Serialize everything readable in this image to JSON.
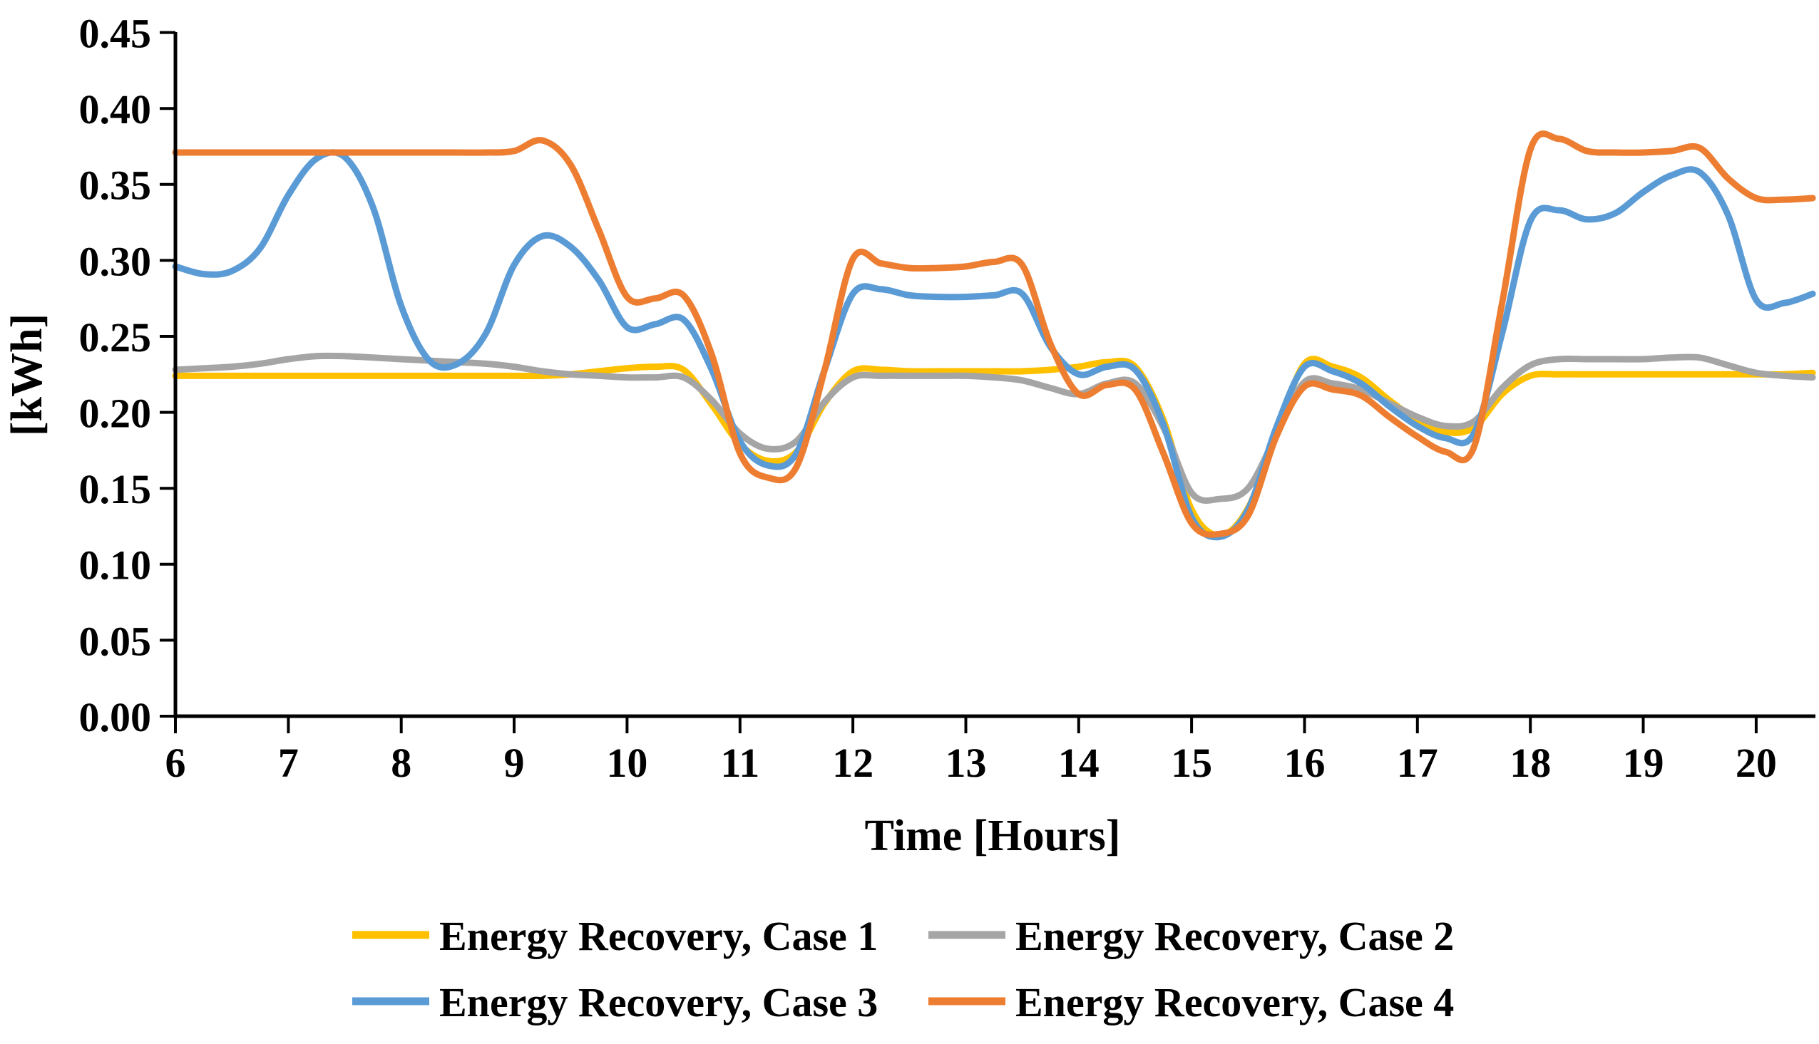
{
  "chart_data": {
    "type": "line",
    "title": "",
    "xlabel": "Time [Hours]",
    "ylabel": "[kWh]",
    "xlim": [
      6,
      20.5
    ],
    "ylim": [
      0,
      0.45
    ],
    "grid": "off",
    "legend_position": "bottom-two-rows",
    "x_ticks": [
      6,
      7,
      8,
      9,
      10,
      11,
      12,
      13,
      14,
      15,
      16,
      17,
      18,
      19,
      20
    ],
    "y_ticks": [
      0.0,
      0.05,
      0.1,
      0.15,
      0.2,
      0.25,
      0.3,
      0.35,
      0.4,
      0.45
    ],
    "y_tick_labels": [
      "0.00",
      "0.05",
      "0.10",
      "0.15",
      "0.20",
      "0.25",
      "0.30",
      "0.35",
      "0.40",
      "0.45"
    ],
    "x": [
      6,
      6.25,
      6.5,
      6.75,
      7,
      7.25,
      7.5,
      7.75,
      8,
      8.25,
      8.5,
      8.75,
      9,
      9.25,
      9.5,
      9.75,
      10,
      10.25,
      10.5,
      10.75,
      11,
      11.25,
      11.5,
      11.75,
      12,
      12.25,
      12.5,
      12.75,
      13,
      13.25,
      13.5,
      13.75,
      14,
      14.25,
      14.5,
      14.75,
      15,
      15.25,
      15.5,
      15.75,
      16,
      16.25,
      16.5,
      16.75,
      17,
      17.25,
      17.5,
      17.75,
      18,
      18.25,
      18.5,
      18.75,
      19,
      19.25,
      19.5,
      19.75,
      20,
      20.25,
      20.5
    ],
    "series": [
      {
        "name": "Energy Recovery, Case 1",
        "color": "#FFC000",
        "values": [
          0.224,
          0.224,
          0.224,
          0.224,
          0.224,
          0.224,
          0.224,
          0.224,
          0.224,
          0.224,
          0.224,
          0.224,
          0.224,
          0.224,
          0.225,
          0.227,
          0.229,
          0.23,
          0.228,
          0.205,
          0.179,
          0.168,
          0.174,
          0.206,
          0.227,
          0.228,
          0.227,
          0.227,
          0.227,
          0.227,
          0.227,
          0.228,
          0.23,
          0.233,
          0.23,
          0.195,
          0.136,
          0.119,
          0.137,
          0.186,
          0.232,
          0.23,
          0.223,
          0.208,
          0.195,
          0.187,
          0.19,
          0.212,
          0.224,
          0.225,
          0.225,
          0.225,
          0.225,
          0.225,
          0.225,
          0.225,
          0.225,
          0.225,
          0.226
        ]
      },
      {
        "name": "Energy Recovery, Case 2",
        "color": "#A5A5A5",
        "values": [
          0.228,
          0.229,
          0.23,
          0.232,
          0.235,
          0.237,
          0.237,
          0.236,
          0.235,
          0.234,
          0.233,
          0.232,
          0.23,
          0.227,
          0.225,
          0.224,
          0.223,
          0.223,
          0.223,
          0.208,
          0.186,
          0.176,
          0.181,
          0.207,
          0.223,
          0.224,
          0.224,
          0.224,
          0.224,
          0.223,
          0.221,
          0.216,
          0.212,
          0.219,
          0.219,
          0.19,
          0.147,
          0.143,
          0.15,
          0.185,
          0.22,
          0.219,
          0.215,
          0.206,
          0.197,
          0.191,
          0.194,
          0.216,
          0.231,
          0.235,
          0.235,
          0.235,
          0.235,
          0.236,
          0.236,
          0.231,
          0.226,
          0.224,
          0.223
        ]
      },
      {
        "name": "Energy Recovery, Case 3",
        "color": "#5B9BD5",
        "values": [
          0.296,
          0.291,
          0.293,
          0.308,
          0.343,
          0.367,
          0.368,
          0.335,
          0.27,
          0.234,
          0.232,
          0.252,
          0.297,
          0.316,
          0.309,
          0.287,
          0.256,
          0.258,
          0.261,
          0.228,
          0.181,
          0.165,
          0.173,
          0.228,
          0.278,
          0.281,
          0.277,
          0.276,
          0.276,
          0.277,
          0.278,
          0.243,
          0.225,
          0.23,
          0.228,
          0.192,
          0.131,
          0.118,
          0.136,
          0.19,
          0.23,
          0.227,
          0.219,
          0.204,
          0.191,
          0.183,
          0.186,
          0.252,
          0.326,
          0.333,
          0.327,
          0.331,
          0.345,
          0.356,
          0.358,
          0.33,
          0.274,
          0.272,
          0.278
        ]
      },
      {
        "name": "Energy Recovery, Case 4",
        "color": "#ED7D31",
        "values": [
          0.371,
          0.371,
          0.371,
          0.371,
          0.371,
          0.371,
          0.371,
          0.371,
          0.371,
          0.371,
          0.371,
          0.371,
          0.372,
          0.379,
          0.363,
          0.32,
          0.276,
          0.275,
          0.277,
          0.238,
          0.173,
          0.157,
          0.164,
          0.228,
          0.301,
          0.298,
          0.295,
          0.295,
          0.296,
          0.299,
          0.297,
          0.245,
          0.212,
          0.218,
          0.215,
          0.173,
          0.127,
          0.12,
          0.132,
          0.184,
          0.217,
          0.215,
          0.211,
          0.197,
          0.184,
          0.174,
          0.177,
          0.272,
          0.373,
          0.38,
          0.372,
          0.371,
          0.371,
          0.372,
          0.374,
          0.354,
          0.341,
          0.34,
          0.341
        ]
      }
    ]
  }
}
